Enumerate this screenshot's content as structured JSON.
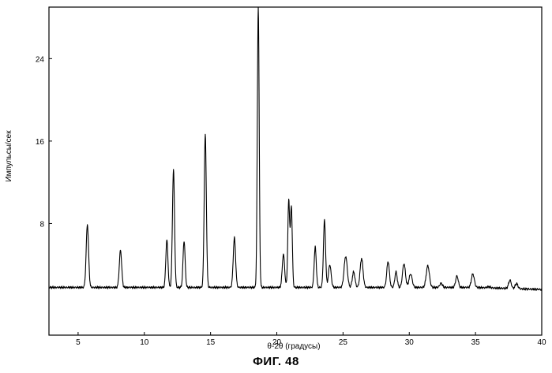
{
  "figure_caption": "ФИГ. 48",
  "chart_data": {
    "type": "line",
    "title": "",
    "xlabel": "θ-2θ (градусы)",
    "ylabel": "Импульсы/сек",
    "xlim": [
      2.8,
      40
    ],
    "ylim": [
      0,
      29
    ],
    "x_ticks": [
      5,
      10,
      15,
      20,
      25,
      30,
      35,
      40
    ],
    "y_ticks": [
      8,
      16,
      24
    ],
    "grid": false,
    "baseline": 1.8,
    "peaks": [
      {
        "x": 5.7,
        "y": 7.9,
        "w": 0.09
      },
      {
        "x": 8.2,
        "y": 5.4,
        "w": 0.09
      },
      {
        "x": 11.7,
        "y": 6.4,
        "w": 0.08
      },
      {
        "x": 12.2,
        "y": 13.2,
        "w": 0.08
      },
      {
        "x": 13.0,
        "y": 6.3,
        "w": 0.08
      },
      {
        "x": 14.6,
        "y": 16.6,
        "w": 0.08
      },
      {
        "x": 16.8,
        "y": 6.6,
        "w": 0.09
      },
      {
        "x": 18.6,
        "y": 29.0,
        "w": 0.07
      },
      {
        "x": 20.5,
        "y": 5.0,
        "w": 0.09
      },
      {
        "x": 20.9,
        "y": 10.2,
        "w": 0.07
      },
      {
        "x": 21.1,
        "y": 9.6,
        "w": 0.07
      },
      {
        "x": 22.9,
        "y": 5.7,
        "w": 0.08
      },
      {
        "x": 23.6,
        "y": 8.3,
        "w": 0.08
      },
      {
        "x": 24.0,
        "y": 4.0,
        "w": 0.1
      },
      {
        "x": 25.2,
        "y": 4.8,
        "w": 0.12
      },
      {
        "x": 25.8,
        "y": 3.3,
        "w": 0.1
      },
      {
        "x": 26.4,
        "y": 4.6,
        "w": 0.11
      },
      {
        "x": 28.4,
        "y": 4.3,
        "w": 0.1
      },
      {
        "x": 29.0,
        "y": 3.3,
        "w": 0.09
      },
      {
        "x": 29.6,
        "y": 4.1,
        "w": 0.11
      },
      {
        "x": 30.1,
        "y": 3.1,
        "w": 0.12
      },
      {
        "x": 31.4,
        "y": 3.9,
        "w": 0.12
      },
      {
        "x": 32.4,
        "y": 2.2,
        "w": 0.1
      },
      {
        "x": 33.6,
        "y": 2.9,
        "w": 0.1
      },
      {
        "x": 34.8,
        "y": 3.1,
        "w": 0.11
      },
      {
        "x": 36.0,
        "y": 1.9,
        "w": 0.12
      },
      {
        "x": 37.6,
        "y": 2.6,
        "w": 0.1
      },
      {
        "x": 38.1,
        "y": 2.3,
        "w": 0.1
      },
      {
        "x": 39.6,
        "y": 1.8,
        "w": 0.1
      }
    ]
  }
}
